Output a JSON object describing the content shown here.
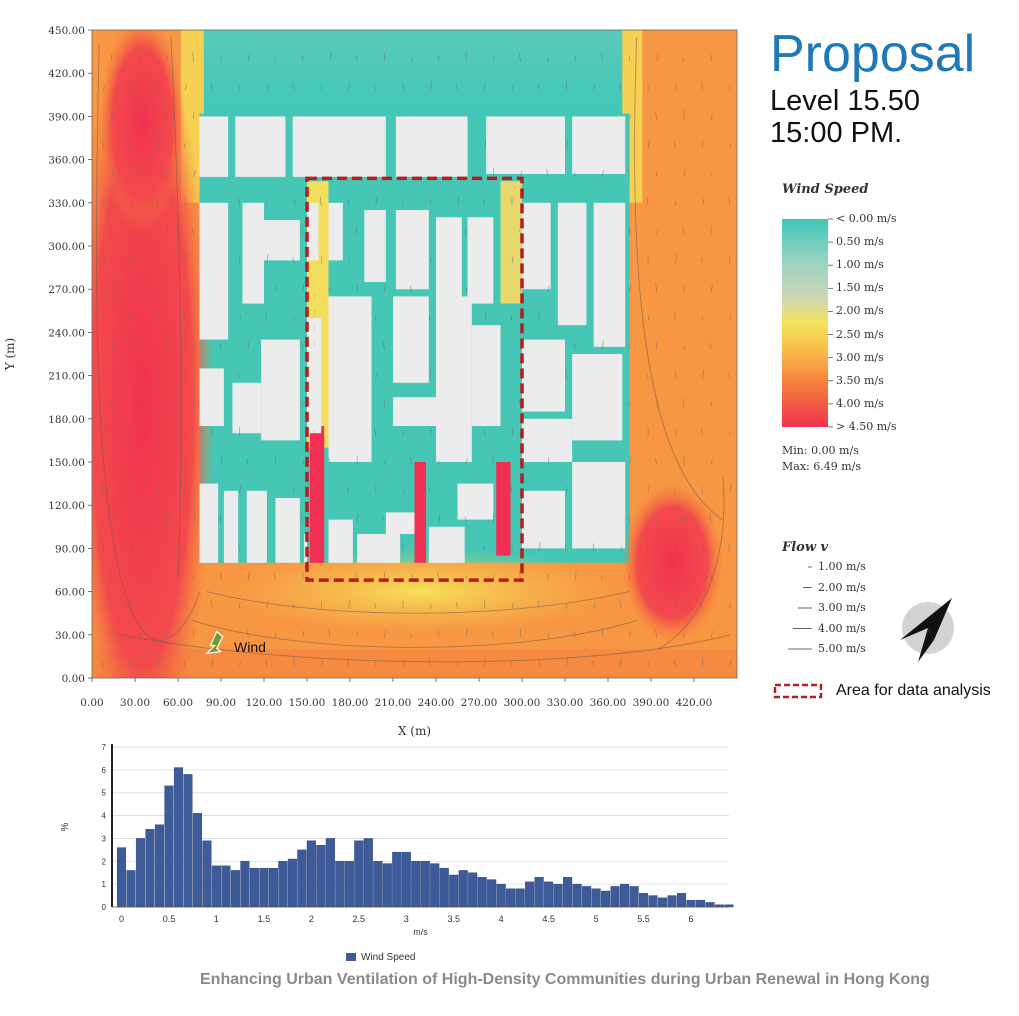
{
  "header": {
    "title": "Proposal",
    "level": "Level 15.50",
    "time": "15:00 PM."
  },
  "footer": {
    "caption": "Enhancing Urban Ventilation of High-Density Communities during Urban Renewal in Hong Kong"
  },
  "wind_label": "Wind",
  "area_label": "Area for data analysis",
  "colors": {
    "low": "#3fc7b8",
    "mid": "#f3e35a",
    "high": "#f0334f",
    "building": "#ececec",
    "area_box": "#b41e1e",
    "bar": "#3d5a99",
    "wind_arrow": "#6e9a2a"
  },
  "speed_legend": {
    "title": "Wind Speed",
    "labels": [
      "< 0.00 m/s",
      "0.50  m/s",
      "1.00  m/s",
      "1.50  m/s",
      "2.00  m/s",
      "2.50  m/s",
      "3.00  m/s",
      "3.50  m/s",
      "4.00  m/s",
      "> 4.50 m/s"
    ],
    "min": "Min: 0.00 m/s",
    "max": "Max: 6.49 m/s"
  },
  "flow_legend": {
    "title": "Flow v",
    "labels": [
      "1.00 m/s",
      "2.00 m/s",
      "3.00 m/s",
      "4.00 m/s",
      "5.00 m/s"
    ]
  },
  "chart_data": [
    {
      "type": "heatmap",
      "title": "",
      "xlabel": "X (m)",
      "ylabel": "Y (m)",
      "xlim": [
        0,
        450
      ],
      "ylim": [
        0,
        450
      ],
      "x_ticks": [
        "0.00",
        "30.00",
        "60.00",
        "90.00",
        "120.00",
        "150.00",
        "180.00",
        "210.00",
        "240.00",
        "270.00",
        "300.00",
        "330.00",
        "360.00",
        "390.00",
        "420.00"
      ],
      "y_ticks": [
        "0.00",
        "30.00",
        "60.00",
        "90.00",
        "120.00",
        "150.00",
        "180.00",
        "210.00",
        "240.00",
        "270.00",
        "300.00",
        "330.00",
        "360.00",
        "390.00",
        "420.00",
        "450.00"
      ],
      "analysis_area": {
        "x": [
          150,
          300
        ],
        "y": [
          68,
          347
        ]
      },
      "color_range": [
        0,
        4.5
      ]
    },
    {
      "type": "bar",
      "title": "",
      "xlabel": "m/s",
      "ylabel": "%",
      "xlim": [
        -0.1,
        6.4
      ],
      "ylim": [
        0,
        7
      ],
      "x_ticks": [
        "0",
        "0.5",
        "1",
        "1.5",
        "2",
        "2.5",
        "3",
        "3.5",
        "4",
        "4.5",
        "5",
        "5.5",
        "6"
      ],
      "y_ticks": [
        "0",
        "1",
        "2",
        "3",
        "4",
        "5",
        "6",
        "7"
      ],
      "legend_position": "bottom",
      "series": [
        {
          "name": "Wind Speed",
          "bin_width": 0.1,
          "x_start": 0.0,
          "values": [
            2.6,
            1.6,
            3.0,
            3.4,
            3.6,
            5.3,
            6.1,
            5.8,
            4.1,
            2.9,
            1.8,
            1.8,
            1.6,
            2.0,
            1.7,
            1.7,
            1.7,
            2.0,
            2.1,
            2.5,
            2.9,
            2.7,
            3.0,
            2.0,
            2.0,
            2.9,
            3.0,
            2.0,
            1.9,
            2.4,
            2.4,
            2.0,
            2.0,
            1.9,
            1.7,
            1.4,
            1.6,
            1.5,
            1.3,
            1.2,
            1.0,
            0.8,
            0.8,
            1.1,
            1.3,
            1.1,
            1.0,
            1.3,
            1.0,
            0.9,
            0.8,
            0.7,
            0.9,
            1.0,
            0.9,
            0.6,
            0.5,
            0.4,
            0.5,
            0.6,
            0.3,
            0.3,
            0.2,
            0.1,
            0.1
          ]
        }
      ]
    }
  ]
}
